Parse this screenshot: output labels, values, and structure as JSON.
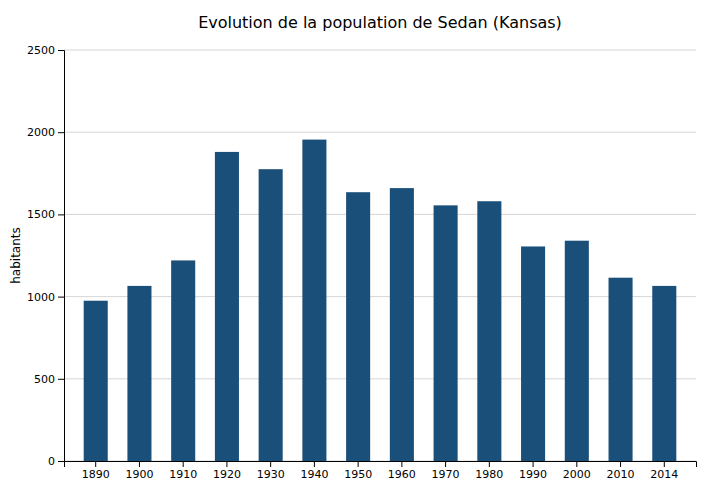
{
  "chart_data": {
    "type": "bar",
    "title": "Evolution de la population de Sedan (Kansas)",
    "ylabel": "habitants",
    "categories": [
      "1890",
      "1900",
      "1910",
      "1920",
      "1930",
      "1940",
      "1950",
      "1960",
      "1970",
      "1980",
      "1990",
      "2000",
      "2010",
      "2014"
    ],
    "values": [
      975,
      1065,
      1220,
      1880,
      1775,
      1955,
      1635,
      1660,
      1555,
      1580,
      1305,
      1340,
      1115,
      1065
    ],
    "color": "#1a4f7a",
    "ylim": [
      0,
      2500
    ],
    "yticks": [
      0,
      500,
      1000,
      1500,
      2000,
      2500
    ],
    "grid": true
  }
}
